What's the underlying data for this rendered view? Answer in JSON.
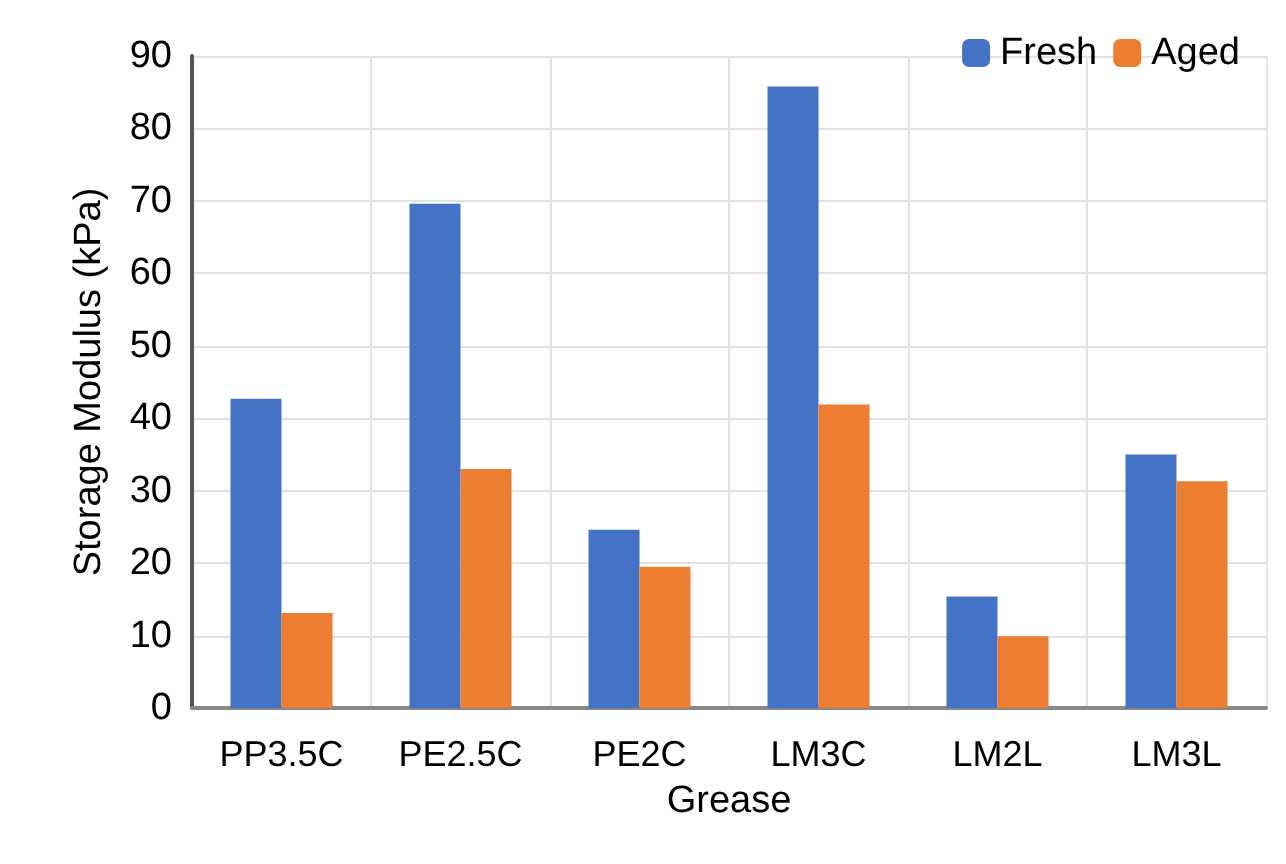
{
  "chart_data": {
    "type": "bar",
    "xlabel": "Grease",
    "ylabel": "Storage Modulus (kPa)",
    "categories": [
      "PP3.5C",
      "PE2.5C",
      "PE2C",
      "LM3C",
      "LM2L",
      "LM3L"
    ],
    "series": [
      {
        "name": "Fresh",
        "color": "#4472c4",
        "values": [
          42.7,
          69.6,
          24.6,
          85.8,
          15.4,
          35.0
        ]
      },
      {
        "name": "Aged",
        "color": "#ed7d31",
        "values": [
          13.1,
          33.0,
          19.5,
          41.9,
          9.9,
          31.3
        ]
      }
    ],
    "ylim": [
      0,
      90
    ],
    "yticks": [
      0,
      10,
      20,
      30,
      40,
      50,
      60,
      70,
      80,
      90
    ],
    "grid": true,
    "legend": "top right"
  }
}
